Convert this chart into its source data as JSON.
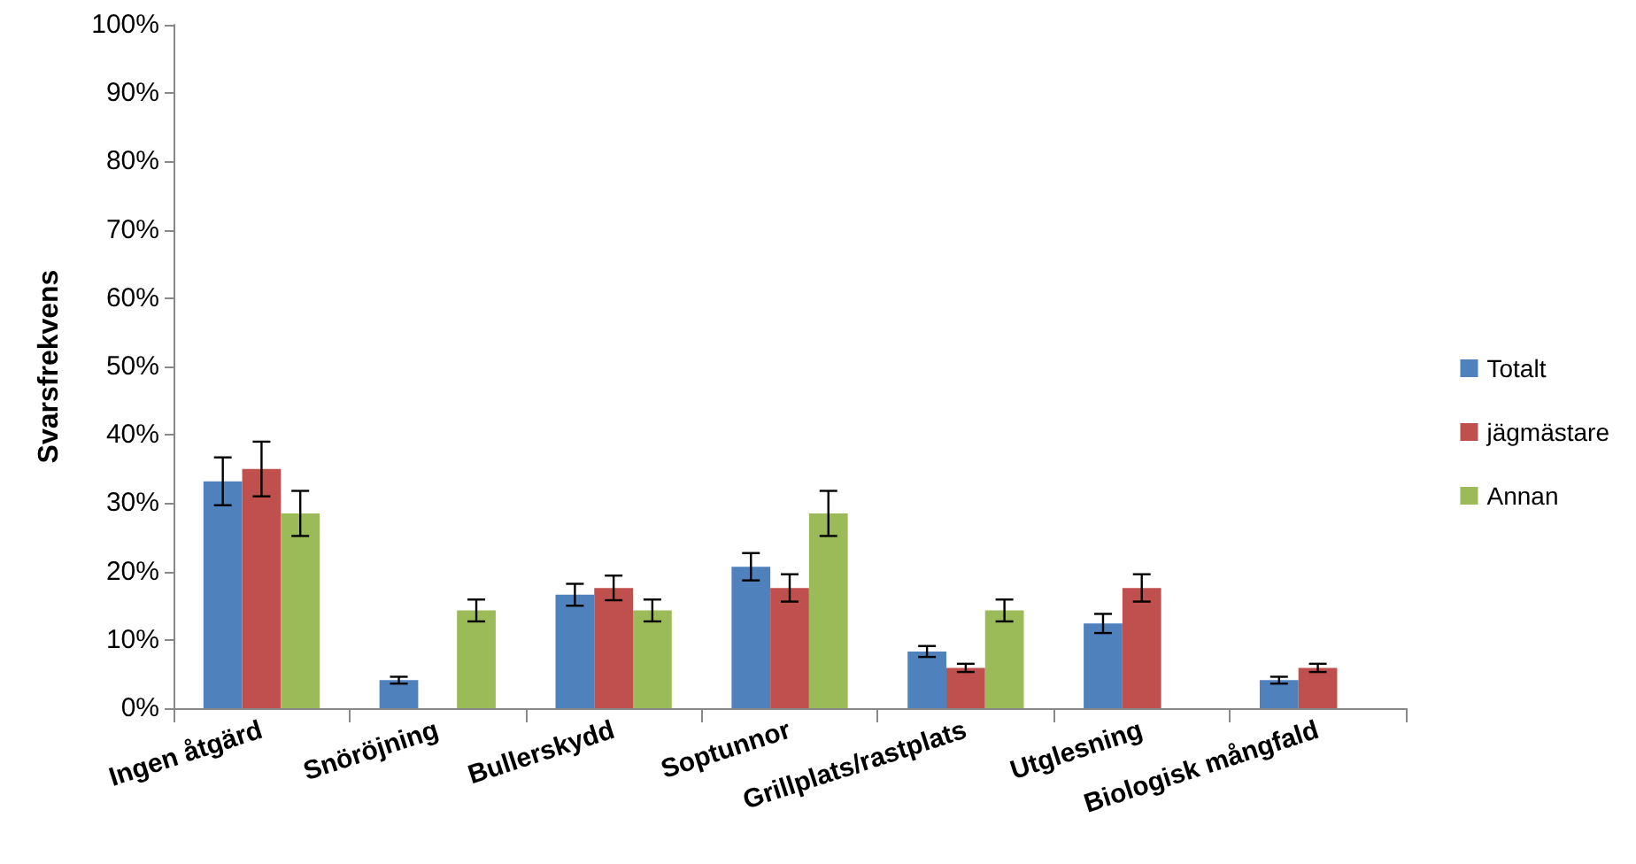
{
  "chart_data": {
    "type": "bar",
    "ylabel": "Svarsfrekvens",
    "categories": [
      "Ingen åtgärd",
      "Snöröjning",
      "Bullerskydd",
      "Soptunnor",
      "Grillplats/rastplats",
      "Utglesning",
      "Biologisk mångfald"
    ],
    "series": [
      {
        "name": "Totalt",
        "color": "#4f81bd",
        "values": [
          33.2,
          4.1,
          16.6,
          20.7,
          8.3,
          12.4,
          4.1
        ],
        "errors": [
          3.5,
          0.5,
          1.6,
          2,
          0.8,
          1.4,
          0.5
        ]
      },
      {
        "name": "jägmästare",
        "color": "#c0504d",
        "values": [
          35,
          null,
          17.6,
          17.6,
          5.9,
          17.6,
          5.9
        ],
        "errors": [
          4,
          null,
          1.8,
          2,
          0.6,
          2,
          0.6
        ]
      },
      {
        "name": "Annan",
        "color": "#9bbb59",
        "values": [
          28.5,
          14.3,
          14.3,
          28.5,
          14.3,
          null,
          null
        ],
        "errors": [
          3.3,
          1.6,
          1.6,
          3.3,
          1.6,
          null,
          null
        ]
      }
    ],
    "ylim": [
      0,
      100
    ],
    "yticks": [
      {
        "value": 0,
        "label": "0%"
      },
      {
        "value": 10,
        "label": "10%"
      },
      {
        "value": 20,
        "label": "20%"
      },
      {
        "value": 30,
        "label": "30%"
      },
      {
        "value": 40,
        "label": "40%"
      },
      {
        "value": 50,
        "label": "50%"
      },
      {
        "value": 60,
        "label": "60%"
      },
      {
        "value": 70,
        "label": "70%"
      },
      {
        "value": 80,
        "label": "80%"
      },
      {
        "value": 90,
        "label": "90%"
      },
      {
        "value": 100,
        "label": "100%"
      }
    ],
    "grid": false,
    "legend": "right"
  }
}
